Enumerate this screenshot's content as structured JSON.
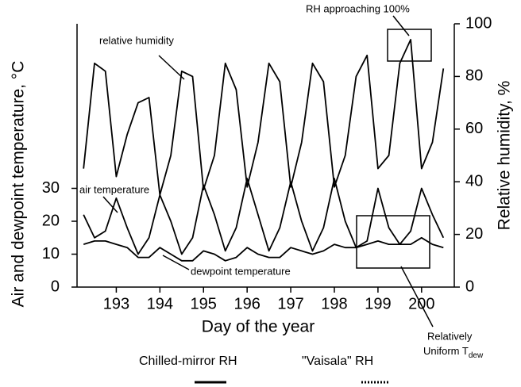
{
  "chart_data": {
    "type": "line",
    "x_label": "Day of the year",
    "y_label": "Air and dewpoint temperature, °C",
    "y2_label": "Relative humidity, %",
    "x": [
      192.25,
      192.5,
      192.75,
      193.0,
      193.25,
      193.5,
      193.75,
      194.0,
      194.25,
      194.5,
      194.75,
      195.0,
      195.25,
      195.5,
      195.75,
      196.0,
      196.25,
      196.5,
      196.75,
      197.0,
      197.25,
      197.5,
      197.75,
      198.0,
      198.25,
      198.5,
      198.75,
      199.0,
      199.25,
      199.5,
      199.75,
      200.0,
      200.25,
      200.5
    ],
    "series": [
      {
        "name": "relative humidity",
        "color": "#000000",
        "axis": "y2",
        "values": [
          45,
          85,
          82,
          42,
          58,
          70,
          72,
          35,
          50,
          82,
          80,
          37,
          50,
          85,
          75,
          38,
          55,
          85,
          78,
          38,
          55,
          85,
          78,
          38,
          50,
          80,
          88,
          45,
          50,
          85,
          94,
          45,
          55,
          83
        ]
      },
      {
        "name": "air temperature",
        "color": "#000000",
        "values": [
          22,
          15,
          17,
          27,
          18,
          10,
          15,
          28,
          20,
          10,
          15,
          31,
          22,
          11,
          18,
          33,
          22,
          11,
          18,
          32,
          20,
          11,
          18,
          33,
          20,
          12,
          14,
          30,
          18,
          13,
          17,
          30,
          22,
          15
        ]
      },
      {
        "name": "dewpoint temperature",
        "color": "#000000",
        "values": [
          13,
          14,
          14,
          13,
          12,
          9,
          9,
          12,
          10,
          8,
          8,
          11,
          10,
          8,
          9,
          12,
          10,
          9,
          9,
          12,
          11,
          10,
          11,
          13,
          12,
          12,
          13,
          14,
          13,
          13,
          13,
          15,
          13,
          12
        ]
      }
    ],
    "xlim": [
      192.1,
      200.75
    ],
    "xticks": [
      193,
      194,
      195,
      196,
      197,
      198,
      199,
      200
    ],
    "ylim": [
      0,
      80
    ],
    "yticks": [
      0,
      10,
      20,
      30
    ],
    "y2lim": [
      0,
      100
    ],
    "y2ticks": [
      0,
      20,
      40,
      60,
      80,
      100
    ],
    "annotations": {
      "rh_high": "RH approaching 100%",
      "uniform_line1": "Relatively",
      "uniform_line2": "Uniform T",
      "uniform_sub": "dew"
    },
    "legend": [
      {
        "label": "Chilled-mirror RH",
        "style": "solid"
      },
      {
        "label": "\"Vaisala\" RH",
        "style": "dotted"
      }
    ]
  }
}
